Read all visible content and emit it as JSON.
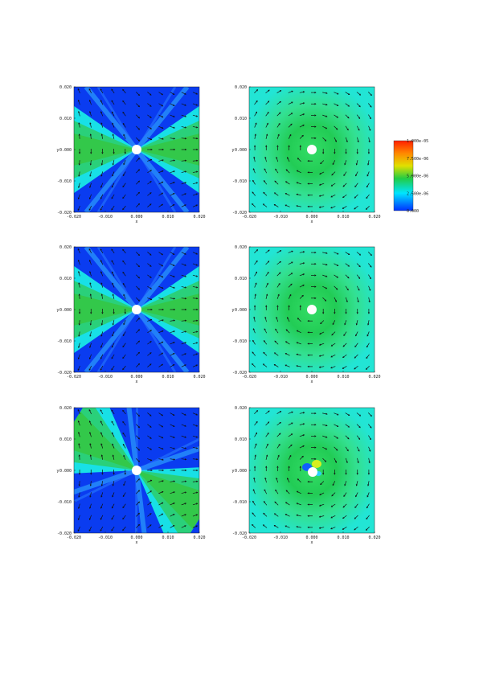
{
  "chart_data": [
    {
      "type": "heatmap",
      "panel": "row1-left",
      "xlabel": "x",
      "ylabel": "y",
      "xlim": [
        -0.02,
        0.02
      ],
      "ylim": [
        -0.02,
        0.02
      ],
      "xticks": [
        "-0.020",
        "-0.010",
        "0.000",
        "0.010",
        "0.020"
      ],
      "yticks": [
        "0.020",
        "0.010",
        "0.000",
        "-0.010",
        "-0.020"
      ],
      "pattern": "hourglass-vertical",
      "vectors": true,
      "obstacle": "white circle at origin"
    },
    {
      "type": "heatmap",
      "panel": "row1-right",
      "xlabel": "x",
      "ylabel": "y",
      "xlim": [
        -0.02,
        0.02
      ],
      "ylim": [
        -0.02,
        0.02
      ],
      "xticks": [
        "-0.020",
        "-0.010",
        "0.000",
        "0.010",
        "0.020"
      ],
      "yticks": [
        "0.020",
        "0.010",
        "0.000",
        "-0.010",
        "-0.020"
      ],
      "pattern": "radial-vortex",
      "vectors": true,
      "obstacle": "white circle at origin"
    },
    {
      "type": "heatmap",
      "panel": "row2-left",
      "xlabel": "x",
      "ylabel": "y",
      "xlim": [
        -0.02,
        0.02
      ],
      "ylim": [
        -0.02,
        0.02
      ],
      "xticks": [
        "-0.020",
        "-0.010",
        "0.000",
        "0.010",
        "0.020"
      ],
      "yticks": [
        "0.020",
        "0.010",
        "0.000",
        "-0.010",
        "-0.020"
      ],
      "pattern": "hourglass-vertical",
      "vectors": true,
      "obstacle": "white circle at origin"
    },
    {
      "type": "heatmap",
      "panel": "row2-right",
      "xlabel": "x",
      "ylabel": "y",
      "xlim": [
        -0.02,
        0.02
      ],
      "ylim": [
        -0.02,
        0.02
      ],
      "xticks": [
        "-0.020",
        "-0.010",
        "0.000",
        "0.010",
        "0.020"
      ],
      "yticks": [
        "0.020",
        "0.010",
        "0.000",
        "-0.010",
        "-0.020"
      ],
      "pattern": "radial-vortex",
      "vectors": true,
      "obstacle": "white circle at origin"
    },
    {
      "type": "heatmap",
      "panel": "row3-left",
      "xlabel": "x",
      "ylabel": "y",
      "xlim": [
        -0.02,
        0.02
      ],
      "ylim": [
        -0.02,
        0.02
      ],
      "xticks": [
        "-0.020",
        "-0.010",
        "0.000",
        "0.010",
        "0.020"
      ],
      "yticks": [
        "0.020",
        "0.010",
        "0.000",
        "-0.010",
        "-0.020"
      ],
      "pattern": "hourglass-tilted",
      "vectors": true,
      "obstacle": "white circle at origin"
    },
    {
      "type": "heatmap",
      "panel": "row3-right",
      "xlabel": "x",
      "ylabel": "y",
      "xlim": [
        -0.02,
        0.02
      ],
      "ylim": [
        -0.02,
        0.02
      ],
      "xticks": [
        "-0.020",
        "-0.010",
        "0.000",
        "0.010",
        "0.020"
      ],
      "yticks": [
        "0.020",
        "0.010",
        "0.000",
        "-0.010",
        "-0.020"
      ],
      "pattern": "radial-vortex-dipole",
      "vectors": true,
      "obstacle": "white circle at origin"
    }
  ],
  "colorbar": {
    "labels": [
      "1.000e-05",
      "7.500e-06",
      "5.000e-06",
      "2.500e-06",
      "0.000"
    ],
    "colors": [
      "#ff2a00",
      "#e6e600",
      "#00cc44",
      "#00e5ff",
      "#0033ff"
    ]
  }
}
